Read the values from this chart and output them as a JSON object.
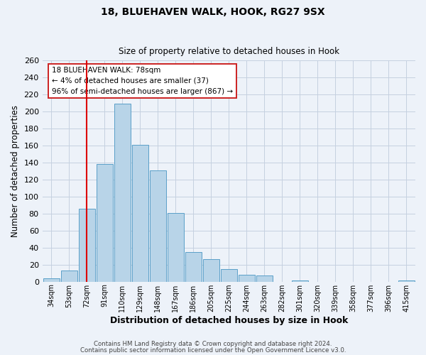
{
  "title1": "18, BLUEHAVEN WALK, HOOK, RG27 9SX",
  "title2": "Size of property relative to detached houses in Hook",
  "xlabel": "Distribution of detached houses by size in Hook",
  "ylabel": "Number of detached properties",
  "bin_labels": [
    "34sqm",
    "53sqm",
    "72sqm",
    "91sqm",
    "110sqm",
    "129sqm",
    "148sqm",
    "167sqm",
    "186sqm",
    "205sqm",
    "225sqm",
    "244sqm",
    "263sqm",
    "282sqm",
    "301sqm",
    "320sqm",
    "339sqm",
    "358sqm",
    "377sqm",
    "396sqm",
    "415sqm"
  ],
  "bar_values": [
    4,
    13,
    86,
    138,
    209,
    161,
    131,
    81,
    35,
    26,
    15,
    8,
    7,
    0,
    1,
    0,
    0,
    0,
    0,
    0,
    1
  ],
  "bar_color": "#b8d4e8",
  "bar_edgecolor": "#5a9fc8",
  "vline_x": 2,
  "vline_color": "#dd0000",
  "ylim": [
    0,
    260
  ],
  "yticks": [
    0,
    20,
    40,
    60,
    80,
    100,
    120,
    140,
    160,
    180,
    200,
    220,
    240,
    260
  ],
  "annotation_title": "18 BLUEHAVEN WALK: 78sqm",
  "annotation_line1": "← 4% of detached houses are smaller (37)",
  "annotation_line2": "96% of semi-detached houses are larger (867) →",
  "annotation_box_color": "#ffffff",
  "annotation_box_edgecolor": "#cc2222",
  "footer1": "Contains HM Land Registry data © Crown copyright and database right 2024.",
  "footer2": "Contains public sector information licensed under the Open Government Licence v3.0.",
  "background_color": "#edf2f9",
  "plot_background": "#edf2f9",
  "grid_color": "#c5d0e0"
}
